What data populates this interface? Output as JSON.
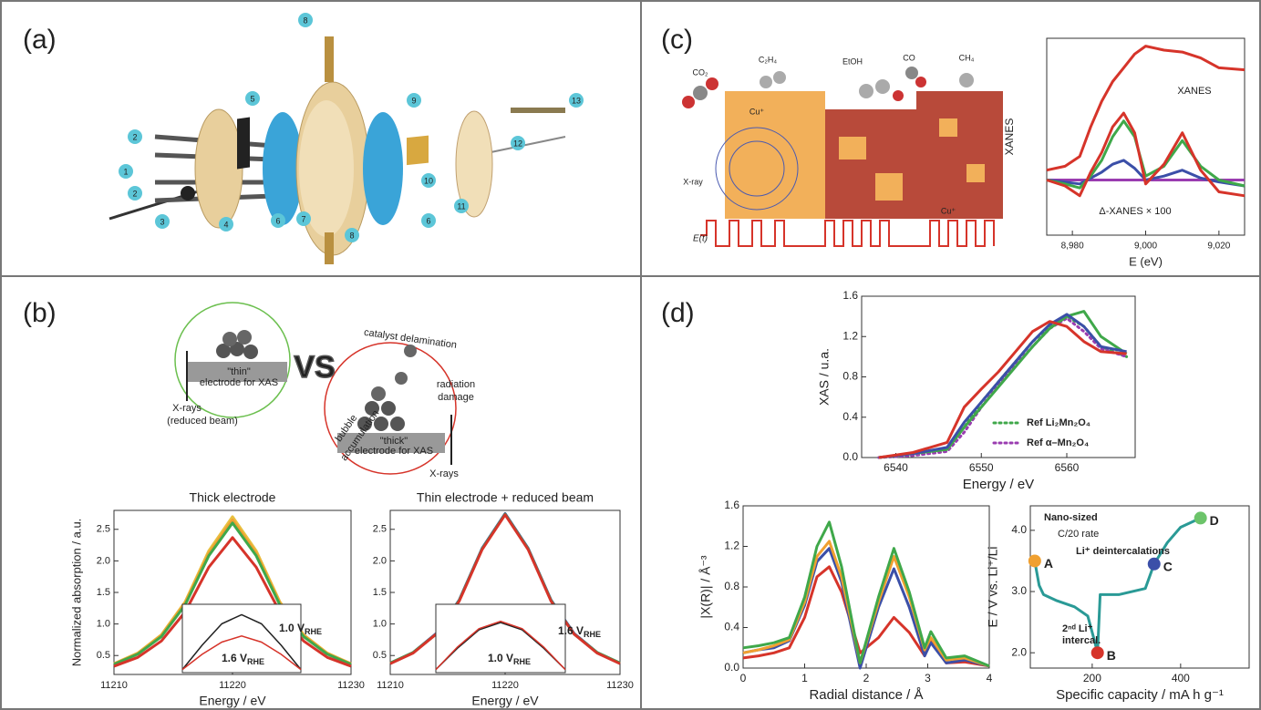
{
  "panels": {
    "a": {
      "label": "(a)",
      "callouts": [
        "1",
        "2",
        "2",
        "3",
        "4",
        "5",
        "6",
        "6",
        "7",
        "8",
        "8",
        "9",
        "10",
        "11",
        "12",
        "13"
      ]
    },
    "b": {
      "label": "(b)",
      "thin_electrode": [
        "\"thin\"",
        "electrode for XAS"
      ],
      "xrays_thin": [
        "X-rays",
        "(reduced beam)"
      ],
      "vs": "VS",
      "delamination": "catalyst delamination",
      "radiation": [
        "radiation",
        "damage"
      ],
      "bubble": [
        "bubble",
        "accumulation"
      ],
      "thick_electrode": [
        "\"thick\"",
        "electrode for XAS"
      ],
      "xrays_thick": "X-rays"
    },
    "c": {
      "label": "(c)",
      "co2": "CO₂",
      "c2h4": "C₂H₄",
      "etoh": "EtOH",
      "co": "CO",
      "ch4": "CH₄",
      "cu_top": "Cu⁺",
      "xray": "X-ray",
      "cu_bottom": "Cu⁺",
      "et": "E(t)"
    },
    "d": {
      "label": "(d)"
    }
  },
  "chart_data": [
    {
      "type": "line",
      "ylabel": "XANES",
      "xlabel": "E (eV)",
      "xlim": [
        8973,
        9027
      ],
      "ylim": [
        0,
        1
      ],
      "xticks": [
        {
          "value": 8980,
          "label": "8,980"
        },
        {
          "value": 9000,
          "label": "9,000"
        },
        {
          "value": 9020,
          "label": "9,020"
        }
      ],
      "yticks": [],
      "annotations": [
        "XANES",
        "Δ-XANES × 100"
      ],
      "x": [
        8973,
        8978,
        8982,
        8985,
        8988,
        8991,
        8994,
        8997,
        9000,
        9005,
        9010,
        9015,
        9020,
        9027
      ],
      "series": [
        {
          "color": "#d6342a",
          "values": [
            0.33,
            0.35,
            0.4,
            0.55,
            0.68,
            0.78,
            0.85,
            0.92,
            0.96,
            0.94,
            0.93,
            0.9,
            0.85,
            0.84
          ]
        },
        {
          "color": "#9a3cb0",
          "values": [
            0.28,
            0.28,
            0.28,
            0.28,
            0.28,
            0.28,
            0.28,
            0.28,
            0.28,
            0.28,
            0.28,
            0.28,
            0.28,
            0.28
          ]
        },
        {
          "color": "#3b4fa8",
          "values": [
            0.28,
            0.27,
            0.26,
            0.29,
            0.32,
            0.36,
            0.38,
            0.34,
            0.28,
            0.3,
            0.33,
            0.29,
            0.27,
            0.25
          ]
        },
        {
          "color": "#3fa84a",
          "values": [
            0.28,
            0.26,
            0.24,
            0.3,
            0.38,
            0.5,
            0.58,
            0.5,
            0.3,
            0.35,
            0.48,
            0.35,
            0.28,
            0.25
          ]
        },
        {
          "color": "#d6342a",
          "values": [
            0.28,
            0.25,
            0.2,
            0.32,
            0.42,
            0.55,
            0.62,
            0.52,
            0.26,
            0.36,
            0.52,
            0.33,
            0.22,
            0.2
          ]
        }
      ]
    },
    {
      "type": "line",
      "title": "Thick electrode",
      "ylabel": "Normalized absorption / a.u.",
      "xlabel": "Energy / eV",
      "xlim": [
        11210,
        11230
      ],
      "ylim": [
        0.2,
        2.8
      ],
      "xticks": [
        11210,
        11220,
        11230
      ],
      "yticks": [
        0.5,
        {
          "value": 1,
          "label": "1.0"
        },
        1.5,
        {
          "value": 2,
          "label": "2.0"
        },
        2.5
      ],
      "x": [
        11210,
        11212,
        11214,
        11216,
        11218,
        11220,
        11222,
        11224,
        11226,
        11228,
        11230
      ],
      "series": [
        {
          "color": "#e8c040",
          "values": [
            0.37,
            0.54,
            0.83,
            1.35,
            2.16,
            2.7,
            2.16,
            1.35,
            0.83,
            0.54,
            0.37
          ]
        },
        {
          "color": "#f0a030",
          "values": [
            0.37,
            0.53,
            0.82,
            1.33,
            2.12,
            2.65,
            2.12,
            1.33,
            0.82,
            0.53,
            0.37
          ]
        },
        {
          "color": "#3fa84a",
          "values": [
            0.36,
            0.52,
            0.8,
            1.3,
            2.08,
            2.6,
            2.08,
            1.3,
            0.8,
            0.52,
            0.36
          ]
        },
        {
          "color": "#d6342a",
          "values": [
            0.33,
            0.47,
            0.73,
            1.19,
            1.9,
            2.37,
            1.9,
            1.19,
            0.73,
            0.47,
            0.33
          ]
        }
      ],
      "inset": {
        "x": [
          11217,
          11218,
          11219,
          11220,
          11221,
          11222,
          11223
        ],
        "series": [
          {
            "color": "#222222",
            "values": [
              0.05,
              0.45,
              0.8,
              0.95,
              0.8,
              0.45,
              0.05
            ]
          },
          {
            "color": "#d6342a",
            "values": [
              0.05,
              0.3,
              0.5,
              0.6,
              0.5,
              0.3,
              0.05
            ]
          }
        ],
        "labels": [
          {
            "text": "1.0 V",
            "sub": "RHE",
            "color": "#222222"
          },
          {
            "text": "1.6 V",
            "sub": "RHE",
            "color": "#d6342a"
          }
        ]
      }
    },
    {
      "type": "line",
      "title": "Thin electrode + reduced beam",
      "xlabel": "Energy / eV",
      "xlim": [
        11210,
        11230
      ],
      "ylim": [
        0.2,
        2.8
      ],
      "xticks": [
        11210,
        11220,
        11230
      ],
      "yticks": [
        0.5,
        {
          "value": 1,
          "label": "1.0"
        },
        1.5,
        {
          "value": 2,
          "label": "2.0"
        },
        2.5
      ],
      "x": [
        11210,
        11212,
        11214,
        11216,
        11218,
        11220,
        11222,
        11224,
        11226,
        11228,
        11230
      ],
      "series": [
        {
          "color": "#3b4fa8",
          "values": [
            0.38,
            0.55,
            0.85,
            1.38,
            2.2,
            2.75,
            2.2,
            1.38,
            0.85,
            0.55,
            0.38
          ]
        },
        {
          "color": "#3fa84a",
          "values": [
            0.38,
            0.55,
            0.84,
            1.37,
            2.19,
            2.74,
            2.19,
            1.37,
            0.84,
            0.55,
            0.38
          ]
        },
        {
          "color": "#d6342a",
          "values": [
            0.37,
            0.54,
            0.84,
            1.36,
            2.18,
            2.73,
            2.18,
            1.36,
            0.84,
            0.54,
            0.37
          ]
        }
      ],
      "inset": {
        "x": [
          11217,
          11218,
          11219,
          11220,
          11221,
          11222,
          11223
        ],
        "series": [
          {
            "color": "#222222",
            "values": [
              0.05,
              0.4,
              0.7,
              0.82,
              0.7,
              0.4,
              0.05
            ]
          },
          {
            "color": "#d6342a",
            "values": [
              0.05,
              0.42,
              0.72,
              0.84,
              0.72,
              0.42,
              0.05
            ]
          }
        ],
        "labels": [
          {
            "text": "1.6 V",
            "sub": "RHE",
            "color": "#d6342a"
          },
          {
            "text": "1.0 V",
            "sub": "RHE",
            "color": "#222222"
          }
        ]
      }
    },
    {
      "type": "line",
      "ylabel": "XAS / u.a.",
      "xlabel": "Energy / eV",
      "legend": "lower right",
      "xlim": [
        6536,
        6568
      ],
      "ylim": [
        0,
        1.6
      ],
      "xticks": [
        6540,
        6550,
        6560
      ],
      "yticks": [
        {
          "value": 0,
          "label": "0.0"
        },
        0.4,
        0.8,
        1.2,
        1.6
      ],
      "x": [
        6538,
        6542,
        6546,
        6548,
        6550,
        6552,
        6554,
        6556,
        6558,
        6560,
        6562,
        6564,
        6567
      ],
      "series": [
        {
          "color": "#3fa84a",
          "dash": "dotted",
          "name": "Ref Li₂Mn₂O₄",
          "values": [
            0,
            0.02,
            0.08,
            0.3,
            0.55,
            0.75,
            0.95,
            1.15,
            1.3,
            1.4,
            1.3,
            1.1,
            1.0
          ]
        },
        {
          "color": "#9a3cb0",
          "dash": "dotted",
          "name": "Ref α–Mn₂O₄",
          "values": [
            0,
            0.02,
            0.06,
            0.25,
            0.5,
            0.72,
            0.92,
            1.1,
            1.28,
            1.38,
            1.25,
            1.08,
            1.0
          ]
        },
        {
          "color": "#3fa84a",
          "values": [
            0,
            0.04,
            0.08,
            0.3,
            0.5,
            0.7,
            0.9,
            1.1,
            1.28,
            1.4,
            1.45,
            1.2,
            1.03
          ]
        },
        {
          "color": "#3b4fa8",
          "values": [
            0,
            0.04,
            0.1,
            0.35,
            0.55,
            0.75,
            0.95,
            1.15,
            1.32,
            1.42,
            1.3,
            1.1,
            1.05
          ]
        },
        {
          "color": "#d6342a",
          "values": [
            0,
            0.05,
            0.15,
            0.5,
            0.68,
            0.85,
            1.05,
            1.25,
            1.35,
            1.3,
            1.15,
            1.05,
            1.03
          ]
        }
      ]
    },
    {
      "type": "line",
      "ylabel": "|X(R)| / Å⁻³",
      "xlabel": "Radial distance / Å",
      "xlim": [
        0,
        4
      ],
      "ylim": [
        0,
        1.6
      ],
      "xticks": [
        0,
        1,
        2,
        3,
        4
      ],
      "yticks": [
        {
          "value": 0,
          "label": "0.0"
        },
        0.4,
        0.8,
        1.2,
        1.6
      ],
      "x": [
        0,
        0.25,
        0.5,
        0.75,
        1.0,
        1.2,
        1.4,
        1.6,
        1.9,
        2.2,
        2.45,
        2.7,
        2.95,
        3.05,
        3.3,
        3.6,
        4.0
      ],
      "series": [
        {
          "color": "#d6342a",
          "values": [
            0.1,
            0.12,
            0.15,
            0.2,
            0.5,
            0.9,
            1.0,
            0.75,
            0.15,
            0.3,
            0.5,
            0.35,
            0.12,
            0.28,
            0.05,
            0.06,
            0.02
          ]
        },
        {
          "color": "#3b4fa8",
          "values": [
            0.15,
            0.18,
            0.2,
            0.27,
            0.62,
            1.05,
            1.18,
            0.85,
            0.0,
            0.6,
            0.98,
            0.6,
            0.12,
            0.25,
            0.05,
            0.08,
            0.02
          ]
        },
        {
          "color": "#f0a030",
          "values": [
            0.15,
            0.18,
            0.22,
            0.28,
            0.65,
            1.1,
            1.25,
            0.9,
            0.05,
            0.65,
            1.1,
            0.7,
            0.18,
            0.3,
            0.08,
            0.1,
            0.02
          ]
        },
        {
          "color": "#3fa84a",
          "values": [
            0.2,
            0.22,
            0.25,
            0.3,
            0.7,
            1.2,
            1.44,
            1.0,
            0.05,
            0.7,
            1.18,
            0.75,
            0.2,
            0.36,
            0.1,
            0.12,
            0.02
          ]
        }
      ]
    },
    {
      "type": "line",
      "ylabel": "E / V vs. Li⁺/Li",
      "xlabel": "Specific capacity / mA h g⁻¹",
      "xlim": [
        60,
        555
      ],
      "ylim": [
        1.75,
        4.4
      ],
      "xticks": [
        200,
        400
      ],
      "yticks": [
        {
          "value": 2,
          "label": "2.0"
        },
        {
          "value": 3,
          "label": "3.0"
        },
        {
          "value": 4,
          "label": "4.0"
        }
      ],
      "annotations": [
        "Nano-sized",
        "C/20 rate",
        "Li⁺ deintercalations",
        "2ⁿᵈ Li⁺",
        "intercal."
      ],
      "x": [
        70,
        80,
        90,
        120,
        160,
        190,
        205,
        212,
        218,
        260,
        320,
        340,
        370,
        400,
        430,
        445
      ],
      "series": [
        {
          "color": "#2a9a96",
          "values": [
            3.5,
            3.1,
            2.95,
            2.85,
            2.75,
            2.6,
            2.2,
            2.0,
            2.95,
            2.95,
            3.05,
            3.45,
            3.8,
            4.05,
            4.15,
            4.2
          ]
        }
      ],
      "points": [
        {
          "label": "A",
          "x": 70,
          "y": 3.5,
          "color": "#f0a030"
        },
        {
          "label": "B",
          "x": 212,
          "y": 2.0,
          "color": "#d6342a"
        },
        {
          "label": "C",
          "x": 340,
          "y": 3.45,
          "color": "#3b4fa8"
        },
        {
          "label": "D",
          "x": 445,
          "y": 4.2,
          "color": "#6cc46a"
        }
      ]
    }
  ]
}
